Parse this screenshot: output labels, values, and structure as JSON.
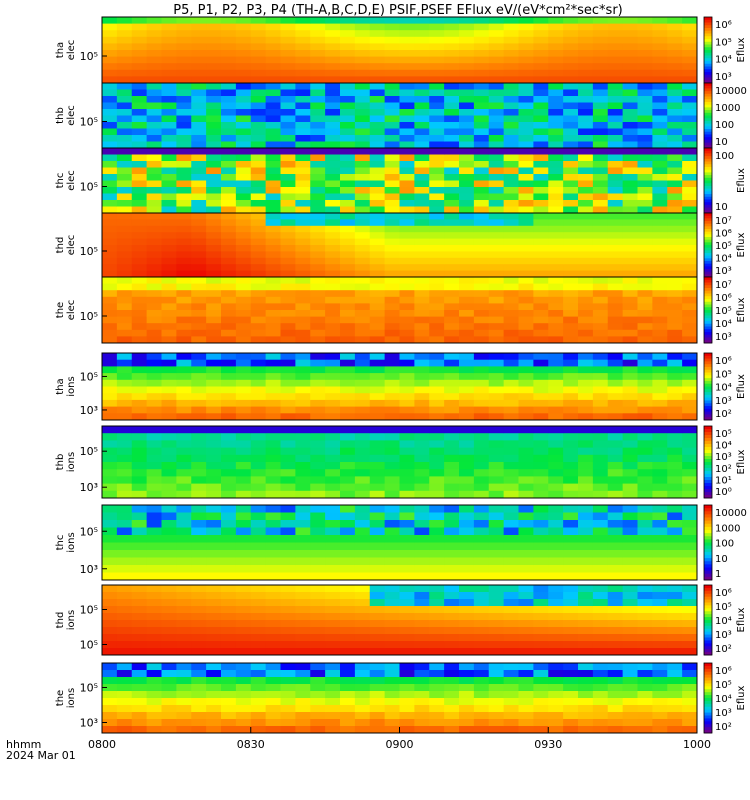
{
  "chart_data": {
    "type": "heatmap",
    "title": "P5, P1, P2, P3, P4 (TH-A,B,C,D,E) PSIF,PSEF EFlux eV/(eV*cm²*sec*sr)",
    "x_tick_labels": [
      "0800",
      "0830",
      "0900",
      "0930",
      "1000"
    ],
    "x_range": [
      "0800",
      "1000"
    ],
    "time_label": "hhmm",
    "date_label": "2024 Mar 01",
    "colormap": "rainbow (purple-blue-cyan-green-yellow-red)",
    "panels": [
      {
        "id": "tha_elec",
        "ylabel": [
          "tha",
          "elec"
        ],
        "yticks": [
          "10⁵"
        ],
        "colorbar_label": "Eflux",
        "colorbar_ticks": [
          "10⁶",
          "10⁵",
          "10⁴",
          "10³"
        ],
        "kind": "elec-smooth"
      },
      {
        "id": "thb_elec",
        "ylabel": [
          "thb",
          "elec"
        ],
        "yticks": [
          "10⁵"
        ],
        "colorbar_label": "",
        "colorbar_ticks": [
          "10000",
          "1000",
          "100",
          "10"
        ],
        "kind": "noisy-blue"
      },
      {
        "id": "thc_elec",
        "ylabel": [
          "thc",
          "elec"
        ],
        "yticks": [
          "10⁵"
        ],
        "colorbar_label": "Eflux",
        "colorbar_ticks": [
          "100",
          "10"
        ],
        "kind": "noisy-green"
      },
      {
        "id": "thd_elec",
        "ylabel": [
          "thd",
          "elec"
        ],
        "yticks": [
          "10⁵"
        ],
        "colorbar_label": "Eflux",
        "colorbar_ticks": [
          "10⁷",
          "10⁶",
          "10⁵",
          "10⁴",
          "10³"
        ],
        "kind": "elec-red"
      },
      {
        "id": "the_elec",
        "ylabel": [
          "the",
          "elec"
        ],
        "yticks": [
          "10⁵"
        ],
        "colorbar_label": "Eflux",
        "colorbar_ticks": [
          "10⁷",
          "10⁶",
          "10⁵",
          "10⁴",
          "10³"
        ],
        "kind": "elec-orange"
      },
      {
        "id": "tha_ions",
        "ylabel": [
          "tha",
          "ions"
        ],
        "yticks": [
          "10⁵",
          "10³"
        ],
        "colorbar_label": "Eflux",
        "colorbar_ticks": [
          "10⁶",
          "10⁵",
          "10⁴",
          "10³",
          "10²"
        ],
        "kind": "ions"
      },
      {
        "id": "thb_ions",
        "ylabel": [
          "thb",
          "ions"
        ],
        "yticks": [
          "10⁵",
          "10³"
        ],
        "colorbar_label": "Eflux",
        "colorbar_ticks": [
          "10⁵",
          "10⁴",
          "10³",
          "10²",
          "10¹",
          "10⁰"
        ],
        "kind": "ions-cyan"
      },
      {
        "id": "thc_ions",
        "ylabel": [
          "thc",
          "ions"
        ],
        "yticks": [
          "10⁵",
          "10³"
        ],
        "colorbar_label": "",
        "colorbar_ticks": [
          "10000",
          "1000",
          "100",
          "10",
          "1"
        ],
        "kind": "ions-noisy"
      },
      {
        "id": "thd_ions",
        "ylabel": [
          "thd",
          "ions"
        ],
        "yticks": [
          "10⁵",
          "10⁵"
        ],
        "colorbar_label": "Eflux",
        "colorbar_ticks": [
          "10⁶",
          "10⁵",
          "10⁴",
          "10³",
          "10²"
        ],
        "kind": "ions-red"
      },
      {
        "id": "the_ions",
        "ylabel": [
          "the",
          "ions"
        ],
        "yticks": [
          "10⁵",
          "10³"
        ],
        "colorbar_label": "Eflux",
        "colorbar_ticks": [
          "10⁶",
          "10⁵",
          "10⁴",
          "10³",
          "10²"
        ],
        "kind": "ions"
      }
    ]
  }
}
